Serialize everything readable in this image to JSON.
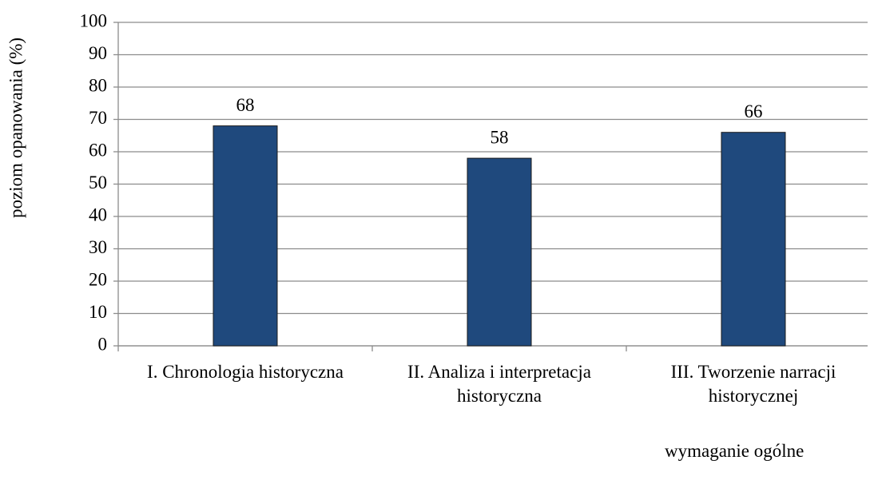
{
  "chart_data": {
    "type": "bar",
    "y_label": "poziom opanowania (%)",
    "x_label": "wymaganie ogólne",
    "categories": [
      "I. Chronologia historyczna",
      "II. Analiza i interpretacja historyczna",
      "III. Tworzenie narracji historycznej"
    ],
    "values": [
      68,
      58,
      66
    ],
    "color": "#1f497d",
    "ylim": [
      0,
      100
    ],
    "yticks": [
      0,
      10,
      20,
      30,
      40,
      50,
      60,
      70,
      80,
      90,
      100
    ],
    "grid": true
  }
}
